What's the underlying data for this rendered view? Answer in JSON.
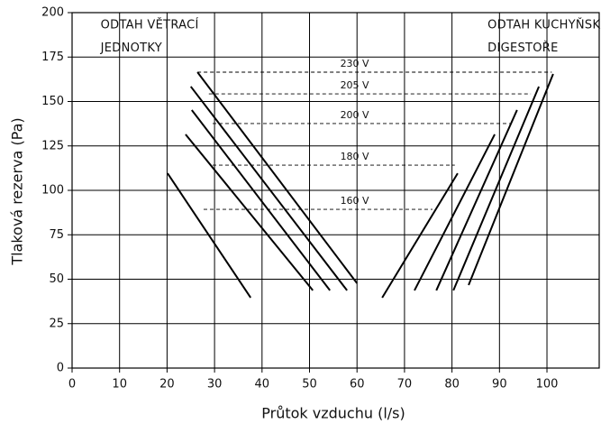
{
  "chart_data": {
    "type": "line",
    "x_label": "Průtok vzduchu (l/s)",
    "y_label": "Tlaková rezerva (Pa)",
    "annotations": [
      "ODTAH VĚTRACÍ",
      "JEDNOTKY",
      "ODTAH KUCHYŇSKÉ",
      "DIGESTOŘE"
    ],
    "xlim": [
      0,
      111
    ],
    "xticks": [
      0,
      10,
      20,
      30,
      40,
      50,
      60,
      70,
      80,
      90,
      100
    ],
    "ylim": [
      0,
      200
    ],
    "yticks": [
      0,
      25,
      50,
      75,
      100,
      125,
      150,
      175,
      200
    ],
    "grid": true,
    "series": [
      {
        "name": "160 V",
        "color": "#000000",
        "x": [
          20.1,
          37.6,
          null,
          65.3,
          81.2
        ],
        "values": [
          109.6,
          39.6,
          null,
          39.6,
          109.6
        ],
        "level": 89.3,
        "level_x": [
          27.7,
          75.9
        ]
      },
      {
        "name": "180 V",
        "color": "#000000",
        "x": [
          23.9,
          50.7,
          null,
          72.1,
          89.0
        ],
        "values": [
          131.5,
          43.7,
          null,
          43.7,
          131.5
        ],
        "level": 114.2,
        "level_x": [
          29.6,
          80.6
        ]
      },
      {
        "name": "200 V",
        "color": "#000000",
        "x": [
          25.2,
          54.3,
          null,
          76.7,
          93.7
        ],
        "values": [
          145.2,
          43.7,
          null,
          43.7,
          145.2
        ],
        "level": 137.6,
        "level_x": [
          29.6,
          92.2
        ]
      },
      {
        "name": "205 V",
        "color": "#000000",
        "x": [
          25.0,
          57.9,
          null,
          80.3,
          98.3
        ],
        "values": [
          158.4,
          43.7,
          null,
          43.7,
          158.4
        ],
        "level": 154.3,
        "level_x": [
          28.8,
          96.6
        ]
      },
      {
        "name": "230 V",
        "color": "#000000",
        "x": [
          26.4,
          60.0,
          null,
          83.5,
          101.3
        ],
        "values": [
          166.5,
          47.7,
          null,
          46.7,
          165.5
        ],
        "level": 166.5,
        "level_x": [
          26.4,
          101.0
        ]
      }
    ]
  }
}
